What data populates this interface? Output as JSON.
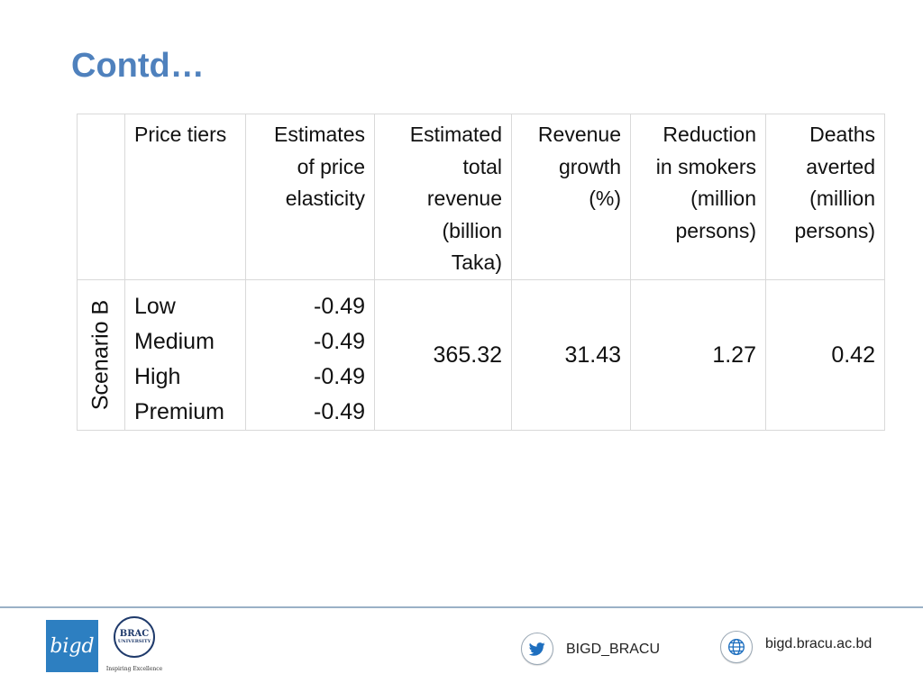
{
  "slide": {
    "title": "Contd…"
  },
  "table": {
    "headers": {
      "price_tiers": "Price tiers",
      "elasticity": [
        "Estimates",
        "of price",
        "elasticity"
      ],
      "revenue": [
        "Estimated",
        "total",
        "revenue",
        "(billion",
        "Taka)"
      ],
      "growth": [
        "Revenue",
        "growth",
        "(%)"
      ],
      "smokers": [
        "Reduction",
        "in smokers",
        "(million",
        "persons)"
      ],
      "deaths": [
        "Deaths",
        "averted",
        "(million",
        "persons)"
      ]
    },
    "scenario": "Scenario B",
    "tiers": [
      "Low",
      "Medium",
      "High",
      "Premium"
    ],
    "elasticities": [
      "-0.49",
      "-0.49",
      "-0.49",
      "-0.49"
    ],
    "total_revenue": "365.32",
    "revenue_growth": "31.43",
    "reduction_in_smokers": "1.27",
    "deaths_averted": "0.42"
  },
  "footer": {
    "bigd_logo": "bigd",
    "brac_logo": {
      "name": "BRAC",
      "sub": "UNIVERSITY",
      "tagline": "Inspiring Excellence"
    },
    "twitter_handle": "BIGD_BRACU",
    "website": "bigd.bracu.ac.bd",
    "icons": {
      "twitter": "twitter-icon",
      "website": "globe-icon"
    },
    "colors": {
      "accent": "#4f81bd",
      "bigd_blue": "#2d7fc1",
      "twitter_blue": "#1e6fbf"
    }
  }
}
